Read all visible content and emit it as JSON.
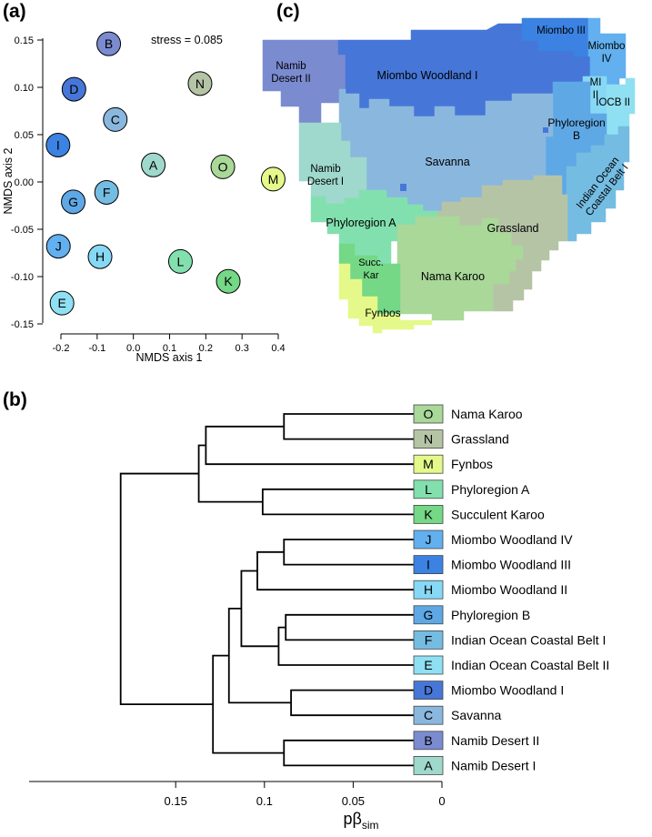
{
  "panels": {
    "a": "(a)",
    "b": "(b)",
    "c": "(c)"
  },
  "colors": {
    "A": "#9fd8cc",
    "B": "#7b8bd0",
    "C": "#8ab7de",
    "D": "#4677d8",
    "E": "#8fe0f2",
    "F": "#74bce2",
    "G": "#5fa8e6",
    "H": "#86d8f5",
    "I": "#3b82e2",
    "J": "#62b0ef",
    "K": "#74d886",
    "L": "#82e0ae",
    "M": "#e4f98a",
    "N": "#b6c4a6",
    "O": "#a9d899"
  },
  "chart_data": [
    {
      "panel": "a",
      "type": "scatter",
      "xlabel": "NMDS axis 1",
      "ylabel": "NMDS axis 2",
      "annotation": "stress = 0.085",
      "xlim": [
        -0.23,
        0.4
      ],
      "ylim": [
        -0.152,
        0.157
      ],
      "xticks": [
        "-0.2",
        "-0.1",
        "0.0",
        "0.1",
        "0.2",
        "0.3",
        "0.4"
      ],
      "yticks": [
        "0.15",
        "0.10",
        "0.05",
        "0.00",
        "-0.05",
        "-0.10",
        "-0.15"
      ],
      "points": [
        {
          "label": "A",
          "x": 0.055,
          "y": 0.018
        },
        {
          "label": "B",
          "x": -0.068,
          "y": 0.146
        },
        {
          "label": "C",
          "x": -0.05,
          "y": 0.066
        },
        {
          "label": "D",
          "x": -0.164,
          "y": 0.098
        },
        {
          "label": "E",
          "x": -0.197,
          "y": -0.128
        },
        {
          "label": "F",
          "x": -0.074,
          "y": -0.011
        },
        {
          "label": "G",
          "x": -0.166,
          "y": -0.021
        },
        {
          "label": "H",
          "x": -0.092,
          "y": -0.079
        },
        {
          "label": "I",
          "x": -0.208,
          "y": 0.039
        },
        {
          "label": "J",
          "x": -0.207,
          "y": -0.068
        },
        {
          "label": "K",
          "x": 0.262,
          "y": -0.105
        },
        {
          "label": "L",
          "x": 0.13,
          "y": -0.084
        },
        {
          "label": "M",
          "x": 0.386,
          "y": 0.003
        },
        {
          "label": "N",
          "x": 0.184,
          "y": 0.104
        },
        {
          "label": "O",
          "x": 0.247,
          "y": 0.016
        }
      ]
    },
    {
      "panel": "b",
      "type": "dendrogram",
      "xlabel": "pβ",
      "xlabel_sub": "sim",
      "xlim": [
        0.186,
        0
      ],
      "xticks": [
        "0.15",
        "0.1",
        "0.05",
        "0"
      ],
      "leaves": [
        {
          "code": "O",
          "name": "Nama Karoo"
        },
        {
          "code": "N",
          "name": "Grassland"
        },
        {
          "code": "M",
          "name": "Fynbos"
        },
        {
          "code": "L",
          "name": "Phyloregion A"
        },
        {
          "code": "K",
          "name": "Succulent Karoo"
        },
        {
          "code": "J",
          "name": "Miombo Woodland IV"
        },
        {
          "code": "I",
          "name": "Miombo Woodland III"
        },
        {
          "code": "H",
          "name": "Miombo Woodland II"
        },
        {
          "code": "G",
          "name": "Phyloregion B"
        },
        {
          "code": "F",
          "name": "Indian Ocean Coastal Belt I"
        },
        {
          "code": "E",
          "name": "Indian Ocean Coastal Belt II"
        },
        {
          "code": "D",
          "name": "Miombo Woodland I"
        },
        {
          "code": "C",
          "name": "Savanna"
        },
        {
          "code": "B",
          "name": "Namib Desert II"
        },
        {
          "code": "A",
          "name": "Namib Desert I"
        }
      ],
      "merges": [
        {
          "id": "m1",
          "left": "O",
          "right": "N",
          "height": 0.089
        },
        {
          "id": "m2",
          "left": "m1",
          "right": "M",
          "height": 0.133
        },
        {
          "id": "m3",
          "left": "L",
          "right": "K",
          "height": 0.101
        },
        {
          "id": "m4",
          "left": "m2",
          "right": "m3",
          "height": 0.137
        },
        {
          "id": "m5",
          "left": "J",
          "right": "I",
          "height": 0.089
        },
        {
          "id": "m6",
          "left": "m5",
          "right": "H",
          "height": 0.104
        },
        {
          "id": "m7",
          "left": "G",
          "right": "F",
          "height": 0.088
        },
        {
          "id": "m8",
          "left": "m7",
          "right": "E",
          "height": 0.092
        },
        {
          "id": "m9",
          "left": "m6",
          "right": "m8",
          "height": 0.113
        },
        {
          "id": "m10",
          "left": "D",
          "right": "C",
          "height": 0.085
        },
        {
          "id": "m11",
          "left": "m9",
          "right": "m10",
          "height": 0.12
        },
        {
          "id": "m12",
          "left": "B",
          "right": "A",
          "height": 0.089
        },
        {
          "id": "m13",
          "left": "m11",
          "right": "m12",
          "height": 0.129
        },
        {
          "id": "m14",
          "left": "m4",
          "right": "m13",
          "height": 0.181
        }
      ]
    }
  ],
  "map": {
    "panel": "c",
    "regions": [
      {
        "code": "B",
        "name": "Namib Desert II",
        "label": [
          "Namib",
          "Desert II"
        ]
      },
      {
        "code": "D",
        "name": "Miombo Woodland I",
        "label": [
          "Miombo Woodland I"
        ]
      },
      {
        "code": "I",
        "name": "Miombo Woodland III",
        "label": [
          "Miombo III"
        ]
      },
      {
        "code": "J",
        "name": "Miombo Woodland IV",
        "label": [
          "Miombo",
          "IV"
        ]
      },
      {
        "code": "H",
        "name": "Miombo Woodland II",
        "label": [
          "MI",
          "II"
        ]
      },
      {
        "code": "E",
        "name": "Indian Ocean Coastal Belt II",
        "label": [
          "IOCB II"
        ]
      },
      {
        "code": "G",
        "name": "Phyloregion B",
        "label": [
          "Phyloregion",
          "B"
        ]
      },
      {
        "code": "C",
        "name": "Savanna",
        "label": [
          "Savanna"
        ]
      },
      {
        "code": "A",
        "name": "Namib Desert I",
        "label": [
          "Namib",
          "Desert I"
        ]
      },
      {
        "code": "F",
        "name": "Indian Ocean Coastal Belt I",
        "label": [
          "Indian Ocean",
          "Coastal Belt I"
        ]
      },
      {
        "code": "N",
        "name": "Grassland",
        "label": [
          "Grassland"
        ]
      },
      {
        "code": "L",
        "name": "Phyloregion A",
        "label": [
          "Phyloregion A"
        ]
      },
      {
        "code": "O",
        "name": "Nama Karoo",
        "label": [
          "Nama Karoo"
        ]
      },
      {
        "code": "K",
        "name": "Succulent Karoo",
        "label": [
          "Succ.",
          "Kar"
        ]
      },
      {
        "code": "M",
        "name": "Fynbos",
        "label": [
          "Fynbos"
        ]
      }
    ]
  }
}
